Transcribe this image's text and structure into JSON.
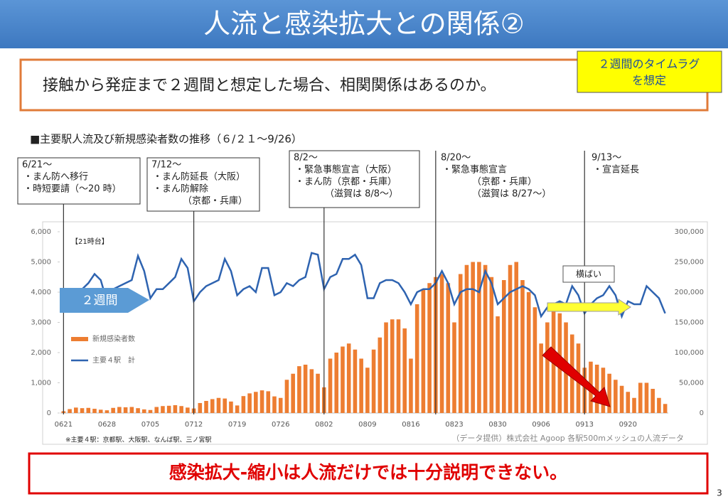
{
  "slide": {
    "title": "人流と感染拡大との関係②",
    "question": "接触から発症まで２週間と想定した場合、相関関係はあるのか。",
    "note": [
      "２週間のタイムラグ",
      "を想定"
    ],
    "conclusion": "感染拡大-縮小は人流だけでは十分説明できない。",
    "page_number": "3"
  },
  "chart_data": {
    "type": "combo",
    "title": "■主要駅人流及び新規感染者数の推移（６/２１〜9/26）",
    "hour_label": "【21時台】",
    "lag_label": "２週間",
    "flat_label": "横ばい",
    "footnote": "※主要４駅：京都駅、大阪駅、なんば駅、三ノ宮駅",
    "source": "（データ提供）株式会社 Agoop 各駅500mメッシュの人流データ",
    "categories": [
      "0621",
      null,
      null,
      null,
      null,
      null,
      null,
      "0628",
      null,
      null,
      null,
      null,
      null,
      null,
      "0705",
      null,
      null,
      null,
      null,
      null,
      null,
      "0712",
      null,
      null,
      null,
      null,
      null,
      null,
      "0719",
      null,
      null,
      null,
      null,
      null,
      null,
      "0726",
      null,
      null,
      null,
      null,
      null,
      null,
      "0802",
      null,
      null,
      null,
      null,
      null,
      null,
      "0809",
      null,
      null,
      null,
      null,
      null,
      null,
      "0816",
      null,
      null,
      null,
      null,
      null,
      null,
      "0823",
      null,
      null,
      null,
      null,
      null,
      null,
      "0830",
      null,
      null,
      null,
      null,
      null,
      null,
      "0906",
      null,
      null,
      null,
      null,
      null,
      null,
      "0913",
      null,
      null,
      null,
      null,
      null,
      null,
      "0920",
      null,
      null,
      null,
      null,
      null,
      null
    ],
    "series": [
      {
        "name": "新規感染者数",
        "type": "bar",
        "color": "#ed7d31",
        "values": [
          60,
          130,
          180,
          160,
          170,
          140,
          110,
          90,
          170,
          200,
          190,
          200,
          160,
          120,
          100,
          200,
          230,
          240,
          260,
          230,
          180,
          150,
          330,
          400,
          460,
          500,
          480,
          380,
          250,
          560,
          650,
          700,
          750,
          720,
          550,
          500,
          1100,
          1300,
          1550,
          1600,
          1450,
          1300,
          850,
          1800,
          2000,
          2200,
          2300,
          2100,
          1800,
          1500,
          2100,
          2500,
          3000,
          3100,
          3100,
          2800,
          1800,
          3600,
          4100,
          4300,
          4500,
          4600,
          4300,
          3000,
          4600,
          4900,
          5000,
          5000,
          4900,
          4500,
          3200,
          4400,
          4900,
          5000,
          4400,
          4000,
          3500,
          2300,
          3000,
          3500,
          3300,
          3000,
          2600,
          2300,
          1500,
          1700,
          1600,
          1500,
          1300,
          1100,
          900,
          700,
          500,
          1000,
          1000,
          800,
          500,
          300
        ]
      },
      {
        "name": "主要４駅　計",
        "type": "line",
        "axis": "y2",
        "color": "#2e63b0",
        "values": [
          190000,
          200000,
          205000,
          205000,
          215000,
          230000,
          220000,
          185000,
          205000,
          210000,
          215000,
          220000,
          260000,
          235000,
          190000,
          205000,
          205000,
          215000,
          225000,
          255000,
          240000,
          185000,
          200000,
          210000,
          215000,
          220000,
          255000,
          235000,
          195000,
          205000,
          210000,
          200000,
          240000,
          240000,
          195000,
          200000,
          215000,
          210000,
          220000,
          225000,
          265000,
          262000,
          205000,
          225000,
          230000,
          255000,
          255000,
          262000,
          245000,
          190000,
          190000,
          215000,
          220000,
          220000,
          215000,
          200000,
          180000,
          200000,
          205000,
          205000,
          215000,
          235000,
          215000,
          180000,
          200000,
          205000,
          205000,
          200000,
          235000,
          215000,
          180000,
          190000,
          200000,
          205000,
          210000,
          205000,
          195000,
          160000,
          175000,
          180000,
          185000,
          180000,
          210000,
          195000,
          165000,
          180000,
          190000,
          195000,
          210000,
          195000,
          160000,
          185000,
          180000,
          180000,
          210000,
          200000,
          190000,
          165000
        ]
      }
    ],
    "ylim": [
      0,
      6000
    ],
    "yticks": [
      0,
      {
        "value": 1000,
        "label": "1,000"
      },
      {
        "value": 2000,
        "label": "2,000"
      },
      {
        "value": 3000,
        "label": "3,000"
      },
      {
        "value": 4000,
        "label": "4,000"
      },
      {
        "value": 5000,
        "label": "5,000"
      },
      {
        "value": 6000,
        "label": "6,000"
      }
    ],
    "y2lim": [
      0,
      300000
    ],
    "y2ticks": [
      0,
      {
        "value": 50000,
        "label": "50,000"
      },
      {
        "value": 100000,
        "label": "100,000"
      },
      {
        "value": 150000,
        "label": "150,000"
      },
      {
        "value": 200000,
        "label": "200,000"
      },
      {
        "value": 250000,
        "label": "250,000"
      },
      {
        "value": 300000,
        "label": "300,000"
      }
    ],
    "events": [
      {
        "date": "6/21〜",
        "lines": [
          "・まん防へ移行",
          "・時短要請（〜20 時）"
        ]
      },
      {
        "date": "7/12〜",
        "lines": [
          "・まん防延長（大阪）",
          "・まん防解除",
          "（京都・兵庫）"
        ]
      },
      {
        "date": "8/2〜",
        "lines": [
          "・緊急事態宣言（大阪）",
          "・まん防（京都・兵庫）",
          "（滋賀は 8/8〜）"
        ]
      },
      {
        "date": "8/20〜",
        "lines": [
          "・緊急事態宣言",
          "（京都・兵庫）",
          "（滋賀は 8/27〜）"
        ]
      },
      {
        "date": "9/13〜",
        "lines": [
          "・宣言延長"
        ]
      }
    ]
  }
}
